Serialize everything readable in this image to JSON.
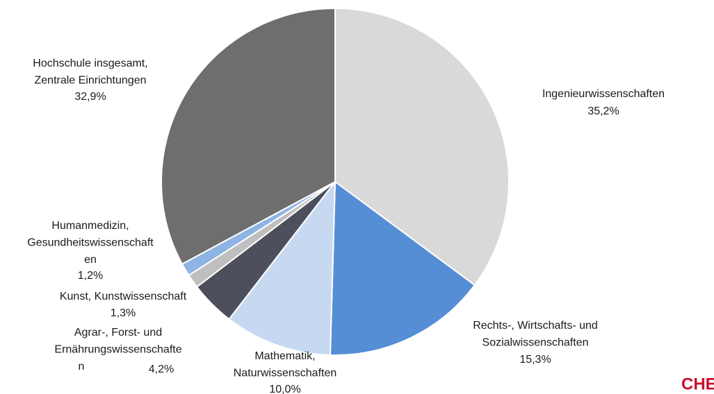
{
  "chart_data": {
    "type": "pie",
    "categories": [
      "Ingenieurwissenschaften",
      "Rechts-, Wirtschafts- und\nSozialwissenschaften",
      "Mathematik,\nNaturwissenschaften",
      "Agrar-, Forst- und\nErnährungswissenschafte\nn",
      "Kunst, Kunstwissenschaft",
      "Humanmedizin,\nGesundheitswissenschaft\nen",
      "Hochschule insgesamt,\nZentrale Einrichtungen"
    ],
    "values": [
      35.2,
      15.3,
      10.0,
      4.2,
      1.3,
      1.2,
      32.9
    ],
    "value_labels": [
      "35,2%",
      "15,3%",
      "10,0%",
      "4,2%",
      "1,3%",
      "1,2%",
      "32,9%"
    ],
    "colors": [
      "#d9d9d9",
      "#558ed5",
      "#c6d9f1",
      "#4d4f5c",
      "#bfbfbf",
      "#8db4e2",
      "#6e6e6e"
    ]
  },
  "logo": "CHE"
}
